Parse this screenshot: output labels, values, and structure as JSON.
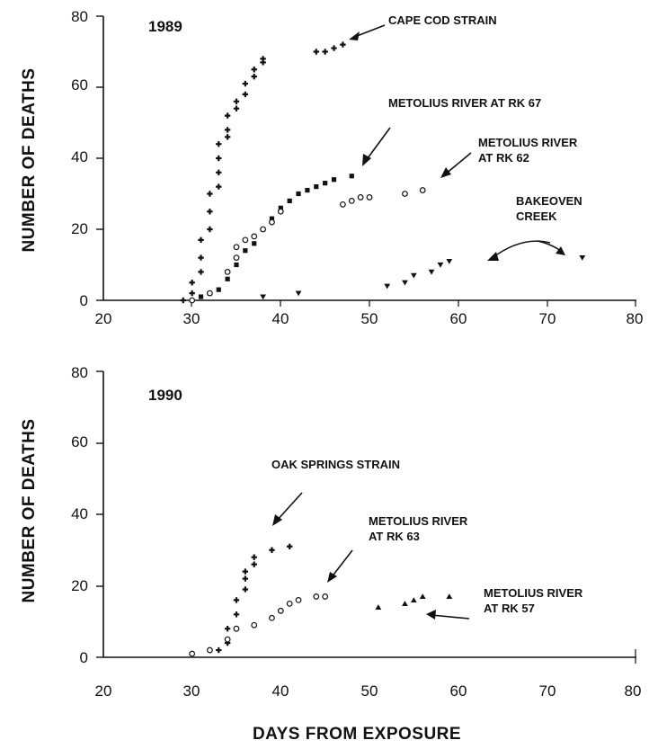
{
  "colors": {
    "ink": "#111111",
    "background": "#ffffff"
  },
  "figure": {
    "xlabel": "DAYS FROM EXPOSURE"
  },
  "chart_data": [
    {
      "type": "scatter",
      "title": "1989",
      "ylabel": "NUMBER OF DEATHS",
      "xlim": [
        20,
        80
      ],
      "ylim": [
        0,
        80
      ],
      "xticks": [
        "20",
        "30",
        "40",
        "50",
        "60",
        "70",
        "80"
      ],
      "yticks": [
        "0",
        "20",
        "40",
        "60",
        "80"
      ],
      "grid": false,
      "legend": "none",
      "series": [
        {
          "name": "CAPE COD STRAIN",
          "marker": "plus",
          "points": [
            [
              29,
              0
            ],
            [
              30,
              2
            ],
            [
              30,
              5
            ],
            [
              31,
              8
            ],
            [
              31,
              12
            ],
            [
              31,
              17
            ],
            [
              32,
              20
            ],
            [
              32,
              25
            ],
            [
              32,
              30
            ],
            [
              33,
              32
            ],
            [
              33,
              36
            ],
            [
              33,
              40
            ],
            [
              33,
              44
            ],
            [
              34,
              46
            ],
            [
              34,
              48
            ],
            [
              34,
              52
            ],
            [
              35,
              54
            ],
            [
              35,
              56
            ],
            [
              36,
              58
            ],
            [
              36,
              61
            ],
            [
              37,
              63
            ],
            [
              37,
              65
            ],
            [
              38,
              67
            ],
            [
              38,
              68
            ],
            [
              44,
              70
            ],
            [
              45,
              70
            ],
            [
              46,
              71
            ],
            [
              47,
              72
            ]
          ]
        },
        {
          "name": "METOLIUS RIVER AT RK 67",
          "marker": "square",
          "points": [
            [
              31,
              1
            ],
            [
              32,
              2
            ],
            [
              33,
              3
            ],
            [
              34,
              6
            ],
            [
              35,
              10
            ],
            [
              36,
              14
            ],
            [
              37,
              16
            ],
            [
              38,
              20
            ],
            [
              39,
              23
            ],
            [
              40,
              26
            ],
            [
              41,
              28
            ],
            [
              42,
              30
            ],
            [
              43,
              31
            ],
            [
              44,
              32
            ],
            [
              45,
              33
            ],
            [
              46,
              34
            ],
            [
              48,
              35
            ]
          ]
        },
        {
          "name": "METOLIUS RIVER AT RK 62",
          "marker": "open-circle",
          "points": [
            [
              30,
              0
            ],
            [
              32,
              2
            ],
            [
              34,
              8
            ],
            [
              35,
              12
            ],
            [
              35,
              15
            ],
            [
              36,
              17
            ],
            [
              37,
              18
            ],
            [
              38,
              20
            ],
            [
              39,
              22
            ],
            [
              40,
              25
            ],
            [
              47,
              27
            ],
            [
              48,
              28
            ],
            [
              49,
              29
            ],
            [
              50,
              29
            ],
            [
              54,
              30
            ],
            [
              56,
              31
            ]
          ]
        },
        {
          "name": "BAKEOVEN CREEK",
          "marker": "triangle-down",
          "points": [
            [
              38,
              1
            ],
            [
              42,
              2
            ],
            [
              52,
              4
            ],
            [
              54,
              5
            ],
            [
              55,
              7
            ],
            [
              57,
              8
            ],
            [
              58,
              10
            ],
            [
              59,
              11
            ],
            [
              74,
              12
            ]
          ]
        }
      ],
      "annotations": [
        {
          "text": "CAPE COD STRAIN"
        },
        {
          "text": "METOLIUS RIVER AT RK 67"
        },
        {
          "lines": [
            "METOLIUS RIVER",
            "AT RK 62"
          ]
        },
        {
          "lines": [
            "BAKEOVEN",
            "CREEK"
          ]
        }
      ]
    },
    {
      "type": "scatter",
      "title": "1990",
      "ylabel": "NUMBER OF DEATHS",
      "xlim": [
        20,
        80
      ],
      "ylim": [
        0,
        80
      ],
      "xticks": [
        "20",
        "30",
        "40",
        "50",
        "60",
        "70",
        "80"
      ],
      "yticks": [
        "0",
        "20",
        "40",
        "60",
        "80"
      ],
      "grid": false,
      "legend": "none",
      "series": [
        {
          "name": "OAK SPRINGS STRAIN",
          "marker": "plus",
          "points": [
            [
              33,
              2
            ],
            [
              34,
              4
            ],
            [
              34,
              8
            ],
            [
              35,
              12
            ],
            [
              35,
              16
            ],
            [
              36,
              19
            ],
            [
              36,
              22
            ],
            [
              36,
              24
            ],
            [
              37,
              26
            ],
            [
              37,
              28
            ],
            [
              39,
              30
            ],
            [
              41,
              31
            ]
          ]
        },
        {
          "name": "METOLIUS RIVER AT RK 63",
          "marker": "open-circle",
          "points": [
            [
              30,
              1
            ],
            [
              32,
              2
            ],
            [
              34,
              5
            ],
            [
              35,
              8
            ],
            [
              37,
              9
            ],
            [
              39,
              11
            ],
            [
              40,
              13
            ],
            [
              41,
              15
            ],
            [
              42,
              16
            ],
            [
              44,
              17
            ],
            [
              45,
              17
            ]
          ]
        },
        {
          "name": "METOLIUS RIVER AT RK 57",
          "marker": "triangle",
          "points": [
            [
              51,
              14
            ],
            [
              54,
              15
            ],
            [
              55,
              16
            ],
            [
              56,
              17
            ],
            [
              59,
              17
            ]
          ]
        }
      ],
      "annotations": [
        {
          "text": "OAK SPRINGS STRAIN"
        },
        {
          "lines": [
            "METOLIUS RIVER",
            "AT RK 63"
          ]
        },
        {
          "lines": [
            "METOLIUS RIVER",
            "AT RK 57"
          ]
        }
      ]
    }
  ]
}
